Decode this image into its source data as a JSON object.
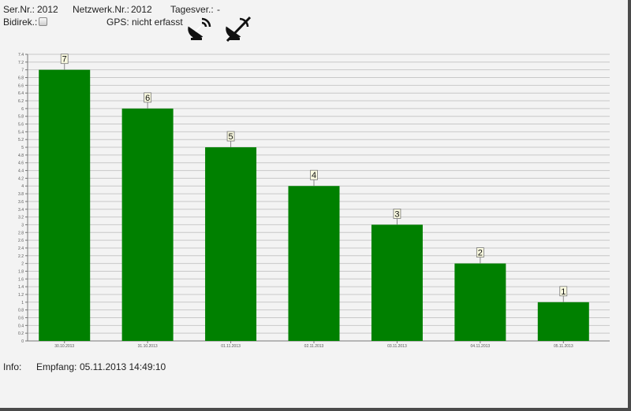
{
  "header": {
    "ser_label": "Ser.Nr.:",
    "ser_value": "2012",
    "netz_label": "Netzwerk.Nr.:",
    "netz_value": "2012",
    "tages_label": "Tagesver.:",
    "tages_value": "-",
    "bidirek_label": "Bidirek.:",
    "bidirek_checked": false,
    "gps_label": "GPS:",
    "gps_value": "nicht erfasst",
    "icons": [
      "satellite-dish-icon",
      "satellite-dish-disabled-icon"
    ]
  },
  "footer": {
    "info_label": "Info:",
    "empfang_label": "Empfang:",
    "empfang_value": "05.11.2013 14:49:10"
  },
  "chart_data": {
    "type": "bar",
    "categories": [
      "30.10.2013",
      "31.10.2013",
      "01.11.2013",
      "02.11.2013",
      "03.11.2013",
      "04.11.2013",
      "05.11.2013"
    ],
    "values": [
      7,
      6,
      5,
      4,
      3,
      2,
      1
    ],
    "data_labels": [
      "7",
      "6",
      "5",
      "4",
      "3",
      "2",
      "1"
    ],
    "ylim": [
      0,
      7.4
    ],
    "ytick_step": 0.2,
    "grid": true,
    "bar_color": "#008000",
    "xlabel": "",
    "ylabel": "",
    "title": ""
  }
}
